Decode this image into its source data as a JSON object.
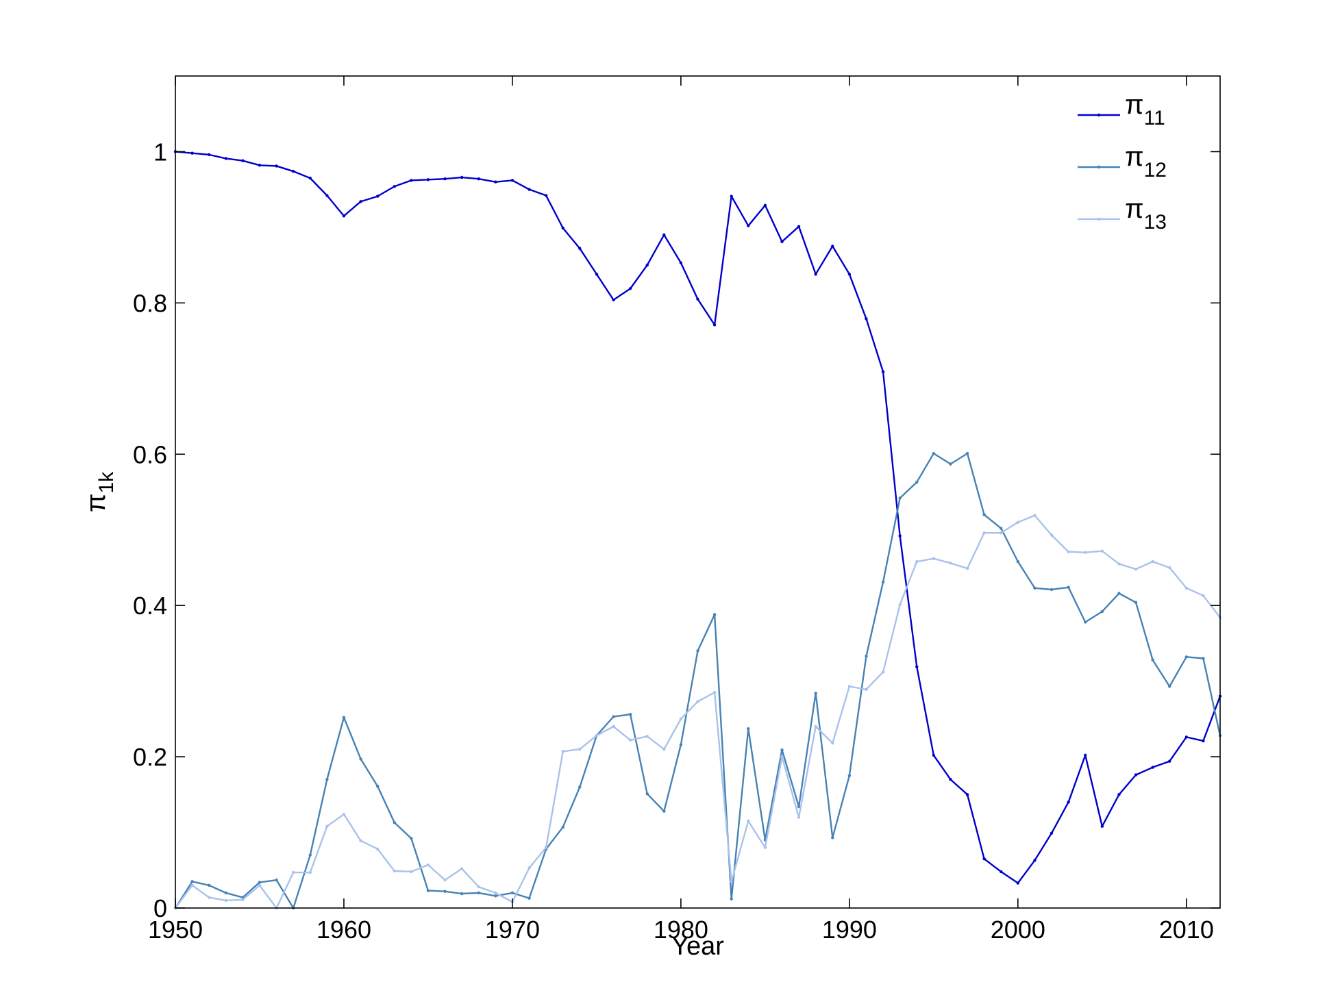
{
  "chart_data": {
    "type": "line",
    "xlabel": "Year",
    "ylabel": {
      "main": "π",
      "sub": "1k"
    },
    "xlim": [
      1950,
      2012
    ],
    "ylim": [
      0,
      1.1
    ],
    "xticks": [
      1950,
      1960,
      1970,
      1980,
      1990,
      2000,
      2010
    ],
    "yticks": [
      0,
      0.2,
      0.4,
      0.6,
      0.8,
      1
    ],
    "ytick_labels": [
      "0",
      "0.2",
      "0.4",
      "0.6",
      "0.8",
      "1"
    ],
    "grid": false,
    "legend_position": "top-right",
    "x": [
      1950,
      1951,
      1952,
      1953,
      1954,
      1955,
      1956,
      1957,
      1958,
      1959,
      1960,
      1961,
      1962,
      1963,
      1964,
      1965,
      1966,
      1967,
      1968,
      1969,
      1970,
      1971,
      1972,
      1973,
      1974,
      1975,
      1976,
      1977,
      1978,
      1979,
      1980,
      1981,
      1982,
      1983,
      1984,
      1985,
      1986,
      1987,
      1988,
      1989,
      1990,
      1991,
      1992,
      1993,
      1994,
      1995,
      1996,
      1997,
      1998,
      1999,
      2000,
      2001,
      2002,
      2003,
      2004,
      2005,
      2006,
      2007,
      2008,
      2009,
      2010,
      2011,
      2012
    ],
    "series": [
      {
        "name": "π",
        "sub": "11",
        "color": "#0000cc",
        "values": [
          1.0,
          0.998,
          0.996,
          0.991,
          0.988,
          0.982,
          0.981,
          0.974,
          0.965,
          0.942,
          0.915,
          0.934,
          0.941,
          0.954,
          0.962,
          0.963,
          0.964,
          0.966,
          0.964,
          0.96,
          0.962,
          0.95,
          0.942,
          0.899,
          0.872,
          0.838,
          0.804,
          0.819,
          0.85,
          0.89,
          0.853,
          0.805,
          0.771,
          0.941,
          0.902,
          0.929,
          0.881,
          0.901,
          0.838,
          0.875,
          0.838,
          0.779,
          0.709,
          0.492,
          0.319,
          0.202,
          0.17,
          0.15,
          0.065,
          0.048,
          0.033,
          0.063,
          0.099,
          0.14,
          0.202,
          0.108,
          0.15,
          0.176,
          0.186,
          0.194,
          0.226,
          0.221,
          0.28
        ]
      },
      {
        "name": "π",
        "sub": "12",
        "color": "#4682b4",
        "values": [
          0.0,
          0.035,
          0.03,
          0.02,
          0.014,
          0.034,
          0.037,
          0.0,
          0.07,
          0.17,
          0.252,
          0.197,
          0.161,
          0.113,
          0.092,
          0.023,
          0.022,
          0.019,
          0.02,
          0.016,
          0.02,
          0.013,
          0.078,
          0.107,
          0.16,
          0.228,
          0.253,
          0.256,
          0.151,
          0.128,
          0.216,
          0.34,
          0.388,
          0.012,
          0.237,
          0.09,
          0.209,
          0.134,
          0.284,
          0.093,
          0.175,
          0.333,
          0.431,
          0.542,
          0.563,
          0.601,
          0.587,
          0.601,
          0.52,
          0.502,
          0.458,
          0.423,
          0.421,
          0.424,
          0.378,
          0.392,
          0.416,
          0.404,
          0.328,
          0.293,
          0.332,
          0.33,
          0.228
        ]
      },
      {
        "name": "π",
        "sub": "13",
        "color": "#a9c2ec",
        "values": [
          0.0,
          0.03,
          0.014,
          0.01,
          0.011,
          0.03,
          0.0,
          0.047,
          0.047,
          0.108,
          0.124,
          0.089,
          0.078,
          0.049,
          0.048,
          0.057,
          0.037,
          0.052,
          0.028,
          0.02,
          0.008,
          0.053,
          0.08,
          0.207,
          0.21,
          0.228,
          0.24,
          0.222,
          0.227,
          0.21,
          0.25,
          0.273,
          0.285,
          0.035,
          0.115,
          0.08,
          0.2,
          0.12,
          0.24,
          0.218,
          0.293,
          0.289,
          0.312,
          0.401,
          0.458,
          0.462,
          0.456,
          0.449,
          0.496,
          0.496,
          0.51,
          0.519,
          0.493,
          0.471,
          0.47,
          0.472,
          0.455,
          0.448,
          0.458,
          0.45,
          0.423,
          0.413,
          0.384
        ]
      }
    ]
  }
}
